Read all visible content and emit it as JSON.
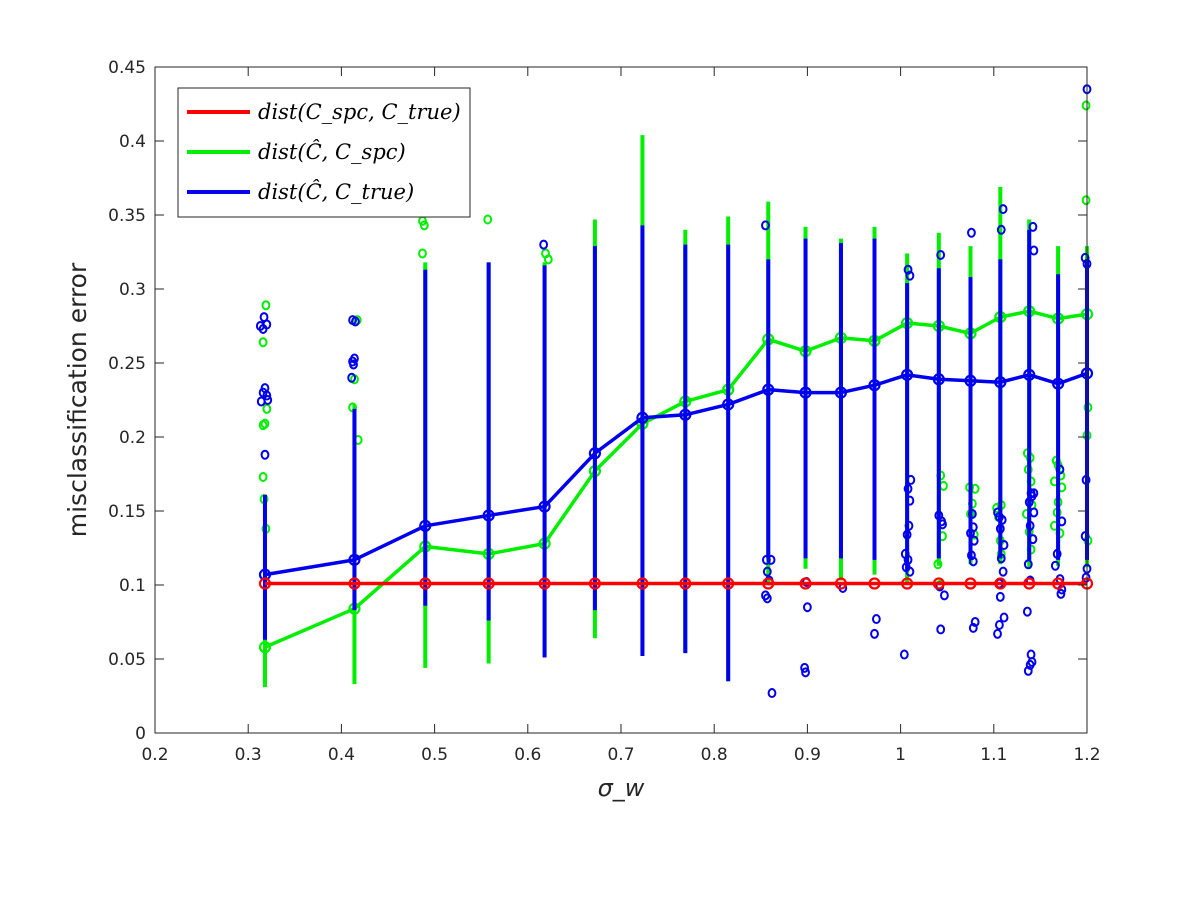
{
  "chart_data": {
    "type": "line",
    "title": "",
    "xlabel": "σ_w",
    "ylabel": "misclassification error",
    "xlim": [
      0.2,
      1.2
    ],
    "ylim": [
      0,
      0.45
    ],
    "x_ticks": [
      "0.2",
      "0.3",
      "0.4",
      "0.5",
      "0.6",
      "0.7",
      "0.8",
      "0.9",
      "1",
      "1.1",
      "1.2"
    ],
    "y_ticks": [
      "0",
      "0.05",
      "0.1",
      "0.15",
      "0.2",
      "0.25",
      "0.3",
      "0.35",
      "0.4",
      "0.45"
    ],
    "grid": false,
    "legend_position": "top-left",
    "x": [
      0.318,
      0.414,
      0.49,
      0.558,
      0.618,
      0.672,
      0.723,
      0.769,
      0.815,
      0.858,
      0.898,
      0.936,
      0.972,
      1.007,
      1.041,
      1.075,
      1.107,
      1.138,
      1.169,
      1.2
    ],
    "series": [
      {
        "name": "dist(C_spc, C_true)",
        "legend_label": "dist(C_spc, C_true)",
        "color": "#ff0000",
        "values": [
          0.101,
          0.101,
          0.101,
          0.101,
          0.101,
          0.101,
          0.101,
          0.101,
          0.101,
          0.101,
          0.101,
          0.101,
          0.101,
          0.101,
          0.101,
          0.101,
          0.101,
          0.101,
          0.101,
          0.101
        ],
        "whisker_low": [],
        "whisker_high": [],
        "outliers": []
      },
      {
        "name": "dist(Ĉ, C_spc)",
        "legend_label": "dist(Ĉ, C_spc)",
        "color": "#00ee00",
        "values": [
          0.058,
          0.084,
          0.126,
          0.121,
          0.128,
          0.177,
          0.209,
          0.224,
          0.232,
          0.266,
          0.258,
          0.267,
          0.265,
          0.277,
          0.275,
          0.27,
          0.281,
          0.285,
          0.28,
          0.283
        ],
        "whisker_low": [
          0.031,
          0.033,
          0.044,
          0.047,
          0.052,
          0.064,
          0.055,
          0.054,
          0.035,
          0.102,
          0.111,
          0.103,
          0.107,
          0.102,
          0.113,
          0.114,
          0.114,
          0.111,
          0.113,
          0.112
        ],
        "whisker_high": [
          0.13,
          0.222,
          0.318,
          0.318,
          0.318,
          0.347,
          0.404,
          0.34,
          0.349,
          0.359,
          0.342,
          0.334,
          0.342,
          0.324,
          0.338,
          0.329,
          0.369,
          0.347,
          0.329,
          0.329
        ],
        "outliers": [
          [
            0.319,
            0.289
          ],
          [
            0.316,
            0.264
          ],
          [
            0.32,
            0.219
          ],
          [
            0.318,
            0.209
          ],
          [
            0.316,
            0.208
          ],
          [
            0.316,
            0.173
          ],
          [
            0.317,
            0.158
          ],
          [
            0.319,
            0.138
          ],
          [
            0.417,
            0.279
          ],
          [
            0.414,
            0.239
          ],
          [
            0.412,
            0.22
          ],
          [
            0.418,
            0.198
          ],
          [
            0.487,
            0.346
          ],
          [
            0.489,
            0.343
          ],
          [
            0.487,
            0.324
          ],
          [
            0.557,
            0.347
          ],
          [
            0.619,
            0.324
          ],
          [
            0.622,
            0.32
          ],
          [
            1.043,
            0.174
          ],
          [
            1.046,
            0.167
          ],
          [
            1.045,
            0.133
          ],
          [
            1.04,
            0.114
          ],
          [
            1.042,
            0.1
          ],
          [
            1.074,
            0.166
          ],
          [
            1.08,
            0.165
          ],
          [
            1.077,
            0.155
          ],
          [
            1.075,
            0.148
          ],
          [
            1.079,
            0.134
          ],
          [
            1.103,
            0.152
          ],
          [
            1.108,
            0.154
          ],
          [
            1.105,
            0.146
          ],
          [
            1.107,
            0.13
          ],
          [
            1.108,
            0.121
          ],
          [
            1.136,
            0.189
          ],
          [
            1.139,
            0.186
          ],
          [
            1.137,
            0.178
          ],
          [
            1.14,
            0.17
          ],
          [
            1.141,
            0.154
          ],
          [
            1.135,
            0.148
          ],
          [
            1.138,
            0.136
          ],
          [
            1.14,
            0.124
          ],
          [
            1.167,
            0.184
          ],
          [
            1.169,
            0.181
          ],
          [
            1.172,
            0.174
          ],
          [
            1.165,
            0.17
          ],
          [
            1.173,
            0.166
          ],
          [
            1.169,
            0.156
          ],
          [
            1.168,
            0.149
          ],
          [
            1.165,
            0.14
          ],
          [
            1.171,
            0.135
          ],
          [
            1.199,
            0.424
          ],
          [
            1.199,
            0.36
          ],
          [
            1.201,
            0.22
          ],
          [
            1.2,
            0.201
          ],
          [
            1.201,
            0.13
          ]
        ]
      },
      {
        "name": "dist(Ĉ, C_true)",
        "legend_label": "dist(Ĉ, C_true)",
        "color": "#0000ee",
        "values": [
          0.107,
          0.117,
          0.14,
          0.147,
          0.153,
          0.189,
          0.213,
          0.215,
          0.222,
          0.232,
          0.23,
          0.23,
          0.235,
          0.242,
          0.239,
          0.238,
          0.237,
          0.242,
          0.236,
          0.243
        ],
        "whisker_low": [
          0.063,
          0.083,
          0.086,
          0.076,
          0.051,
          0.083,
          0.052,
          0.054,
          0.035,
          0.118,
          0.118,
          0.118,
          0.117,
          0.11,
          0.118,
          0.118,
          0.118,
          0.117,
          0.117,
          0.117
        ],
        "whisker_high": [
          0.161,
          0.219,
          0.313,
          0.318,
          0.316,
          0.329,
          0.343,
          0.33,
          0.33,
          0.32,
          0.334,
          0.331,
          0.334,
          0.304,
          0.314,
          0.308,
          0.32,
          0.34,
          0.31,
          0.32
        ],
        "outliers": [
          [
            0.317,
            0.281
          ],
          [
            0.313,
            0.275
          ],
          [
            0.32,
            0.276
          ],
          [
            0.316,
            0.273
          ],
          [
            0.318,
            0.233
          ],
          [
            0.316,
            0.23
          ],
          [
            0.32,
            0.228
          ],
          [
            0.314,
            0.224
          ],
          [
            0.321,
            0.225
          ],
          [
            0.318,
            0.188
          ],
          [
            0.412,
            0.279
          ],
          [
            0.415,
            0.278
          ],
          [
            0.414,
            0.253
          ],
          [
            0.412,
            0.251
          ],
          [
            0.413,
            0.249
          ],
          [
            0.411,
            0.24
          ],
          [
            0.617,
            0.33
          ],
          [
            0.855,
            0.343
          ],
          [
            0.856,
            0.117
          ],
          [
            0.861,
            0.117
          ],
          [
            0.857,
            0.109
          ],
          [
            0.859,
            0.103
          ],
          [
            0.855,
            0.093
          ],
          [
            0.857,
            0.091
          ],
          [
            0.862,
            0.027
          ],
          [
            0.899,
            0.102
          ],
          [
            0.9,
            0.085
          ],
          [
            0.897,
            0.044
          ],
          [
            0.898,
            0.041
          ],
          [
            0.938,
            0.098
          ],
          [
            0.974,
            0.077
          ],
          [
            0.972,
            0.067
          ],
          [
            1.008,
            0.313
          ],
          [
            1.01,
            0.309
          ],
          [
            1.011,
            0.171
          ],
          [
            1.008,
            0.165
          ],
          [
            1.01,
            0.157
          ],
          [
            1.009,
            0.14
          ],
          [
            1.007,
            0.134
          ],
          [
            1.005,
            0.121
          ],
          [
            1.008,
            0.117
          ],
          [
            1.006,
            0.112
          ],
          [
            1.01,
            0.109
          ],
          [
            1.004,
            0.053
          ],
          [
            1.043,
            0.323
          ],
          [
            1.041,
            0.147
          ],
          [
            1.044,
            0.143
          ],
          [
            1.045,
            0.141
          ],
          [
            1.042,
            0.099
          ],
          [
            1.047,
            0.093
          ],
          [
            1.043,
            0.07
          ],
          [
            1.076,
            0.338
          ],
          [
            1.077,
            0.148
          ],
          [
            1.078,
            0.139
          ],
          [
            1.075,
            0.135
          ],
          [
            1.079,
            0.13
          ],
          [
            1.076,
            0.12
          ],
          [
            1.078,
            0.116
          ],
          [
            1.08,
            0.075
          ],
          [
            1.078,
            0.071
          ],
          [
            1.11,
            0.354
          ],
          [
            1.108,
            0.34
          ],
          [
            1.104,
            0.149
          ],
          [
            1.106,
            0.146
          ],
          [
            1.109,
            0.144
          ],
          [
            1.107,
            0.138
          ],
          [
            1.111,
            0.127
          ],
          [
            1.108,
            0.118
          ],
          [
            1.11,
            0.109
          ],
          [
            1.106,
            0.101
          ],
          [
            1.107,
            0.092
          ],
          [
            1.111,
            0.078
          ],
          [
            1.106,
            0.073
          ],
          [
            1.104,
            0.067
          ],
          [
            1.142,
            0.342
          ],
          [
            1.143,
            0.326
          ],
          [
            1.14,
            0.162
          ],
          [
            1.143,
            0.162
          ],
          [
            1.141,
            0.16
          ],
          [
            1.138,
            0.156
          ],
          [
            1.143,
            0.149
          ],
          [
            1.139,
            0.14
          ],
          [
            1.142,
            0.131
          ],
          [
            1.137,
            0.114
          ],
          [
            1.139,
            0.103
          ],
          [
            1.136,
            0.082
          ],
          [
            1.14,
            0.053
          ],
          [
            1.141,
            0.048
          ],
          [
            1.139,
            0.046
          ],
          [
            1.137,
            0.042
          ],
          [
            1.171,
            0.178
          ],
          [
            1.173,
            0.143
          ],
          [
            1.168,
            0.121
          ],
          [
            1.166,
            0.113
          ],
          [
            1.171,
            0.104
          ],
          [
            1.173,
            0.097
          ],
          [
            1.172,
            0.094
          ],
          [
            1.2,
            0.435
          ],
          [
            1.198,
            0.321
          ],
          [
            1.2,
            0.317
          ],
          [
            1.199,
            0.171
          ],
          [
            1.198,
            0.133
          ],
          [
            1.2,
            0.111
          ],
          [
            1.199,
            0.105
          ]
        ]
      }
    ]
  }
}
